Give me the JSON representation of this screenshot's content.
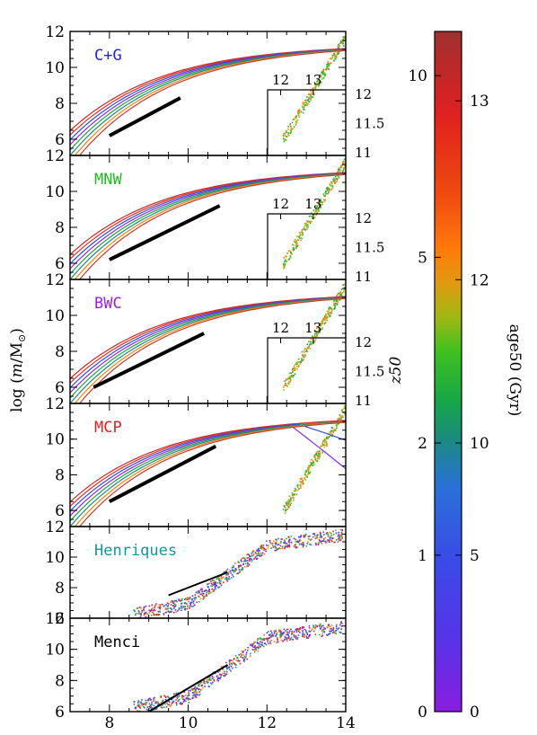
{
  "chart_data": {
    "type": "line",
    "x_axis": {
      "range": [
        7,
        14
      ],
      "ticks": [
        "8",
        "10",
        "12",
        "14"
      ]
    },
    "y_axis": {
      "label": "log (m/M⊙)",
      "range": [
        6,
        12
      ],
      "ticks": [
        "6",
        "8",
        "10",
        "12"
      ]
    },
    "inset": {
      "x_ticks": [
        "12",
        "13"
      ],
      "y_ticks": [
        "12",
        "11.5",
        "11"
      ]
    },
    "panels": [
      {
        "label": "C+G",
        "label_color": "#2222dd",
        "has_inset": true,
        "power_law": {
          "x": [
            8,
            9.8
          ],
          "y": [
            6.2,
            8.3
          ]
        }
      },
      {
        "label": "MNW",
        "label_color": "#22bb22",
        "has_inset": true,
        "power_law": {
          "x": [
            8,
            10.8
          ],
          "y": [
            6.2,
            9.2
          ]
        }
      },
      {
        "label": "BWC",
        "label_color": "#9922dd",
        "has_inset": true,
        "power_law": {
          "x": [
            7.6,
            10.4
          ],
          "y": [
            6.0,
            9.0
          ]
        }
      },
      {
        "label": "MCP",
        "label_color": "#dd2222",
        "has_inset": false,
        "power_law": {
          "x": [
            8,
            10.7
          ],
          "y": [
            6.5,
            9.6
          ]
        }
      },
      {
        "label": "Henriques",
        "label_color": "#119999",
        "has_inset": false,
        "power_law": {
          "x": [
            9.5,
            11
          ],
          "y": [
            7.5,
            9.0
          ]
        }
      },
      {
        "label": "Menci",
        "label_color": "#000000",
        "has_inset": false,
        "power_law": {
          "x": [
            9,
            11
          ],
          "y": [
            6.0,
            9.0
          ]
        }
      }
    ],
    "colorbar": {
      "left_axis_label": "z50",
      "left_ticks": [
        "0",
        "1",
        "2",
        "5",
        "10"
      ],
      "right_axis_label": "age50 (Gyr)",
      "right_ticks": [
        "0",
        "5",
        "10",
        "12",
        "13"
      ],
      "colormap": [
        "#8a1ee0",
        "#6a2ae8",
        "#4040e8",
        "#2f5fe0",
        "#2a7ad0",
        "#1f8c7a",
        "#1aa050",
        "#20b82a",
        "#55c018",
        "#8cc010",
        "#b0b012",
        "#d09a10",
        "#f08a10",
        "#ff6a08",
        "#f04010",
        "#e02020",
        "#c82828",
        "#a83838"
      ]
    }
  }
}
